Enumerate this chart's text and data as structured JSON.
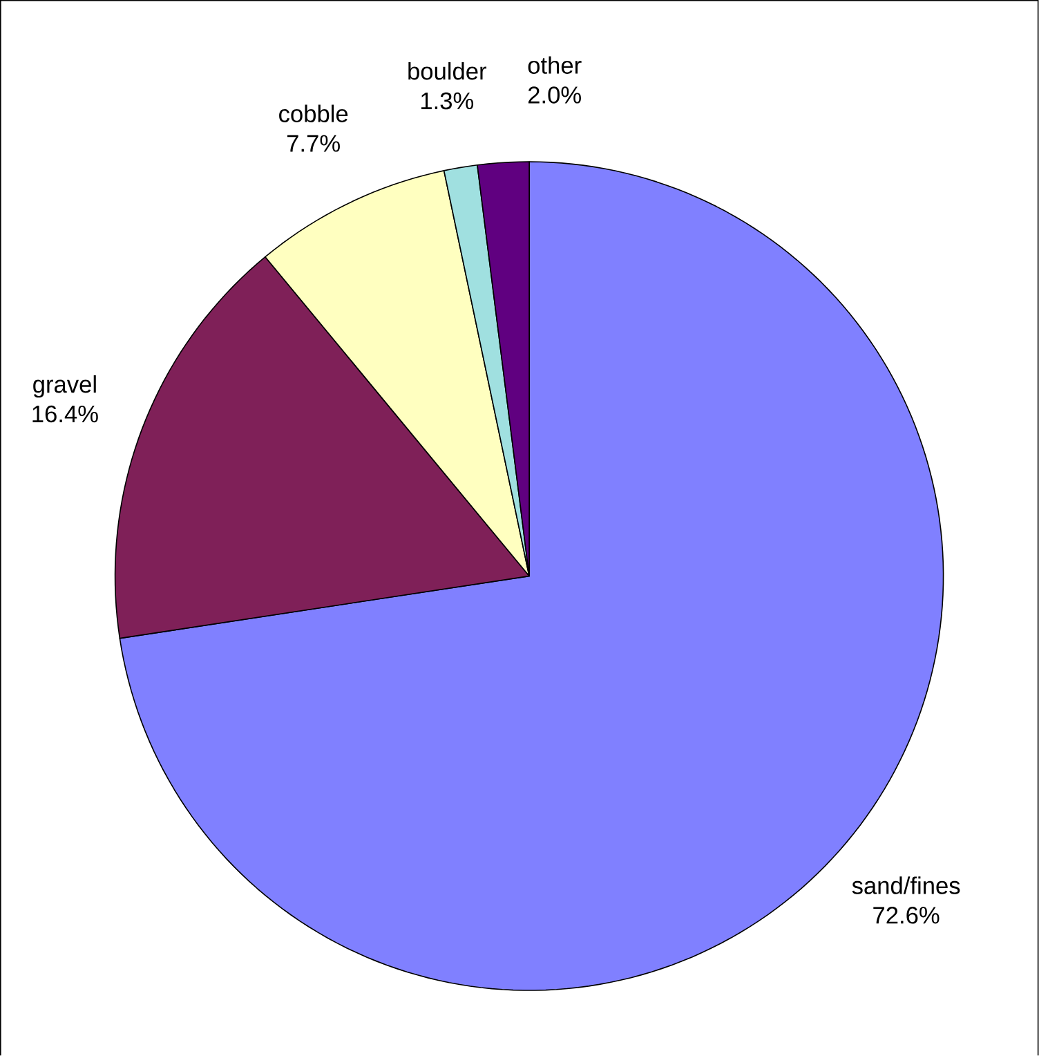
{
  "chart_data": {
    "type": "pie",
    "categories": [
      "sand/fines",
      "gravel",
      "cobble",
      "boulder",
      "other"
    ],
    "values": [
      72.6,
      16.4,
      7.7,
      1.3,
      2.0
    ],
    "value_labels": [
      "72.6%",
      "16.4%",
      "7.7%",
      "1.3%",
      "2.0%"
    ],
    "colors": [
      "#8080ff",
      "#7f2058",
      "#ffffc0",
      "#a0e0e0",
      "#600080"
    ]
  }
}
